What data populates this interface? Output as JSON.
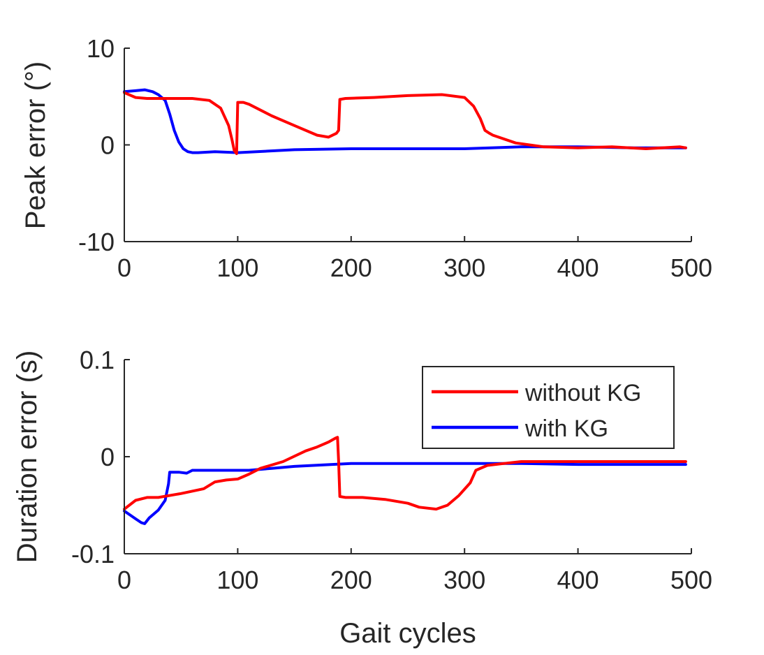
{
  "chart_data": [
    {
      "type": "line",
      "ylabel": "Peak error (°)",
      "xlabel": "",
      "xlim": [
        0,
        500
      ],
      "ylim": [
        -10,
        10
      ],
      "xticks": [
        "0",
        "100",
        "200",
        "300",
        "400",
        "500"
      ],
      "yticks": [
        "-10",
        "0",
        "10"
      ],
      "grid": false,
      "series": [
        {
          "color": "#ff0000",
          "x": [
            0,
            10,
            20,
            40,
            60,
            75,
            85,
            92,
            95,
            97,
            99,
            100,
            105,
            110,
            130,
            150,
            170,
            180,
            187,
            189,
            190,
            195,
            220,
            250,
            280,
            300,
            308,
            314,
            318,
            322,
            325,
            330,
            345,
            370,
            400,
            430,
            460,
            490,
            495
          ],
          "y": [
            5.4,
            4.9,
            4.8,
            4.8,
            4.8,
            4.6,
            3.8,
            2.0,
            0.5,
            -0.6,
            -0.9,
            4.4,
            4.4,
            4.2,
            3.0,
            2.0,
            1.0,
            0.8,
            1.2,
            1.5,
            4.7,
            4.8,
            4.9,
            5.1,
            5.2,
            4.9,
            4.0,
            2.7,
            1.5,
            1.2,
            1.0,
            0.8,
            0.2,
            -0.2,
            -0.3,
            -0.2,
            -0.4,
            -0.2,
            -0.3
          ]
        },
        {
          "color": "#0000ff",
          "x": [
            0,
            10,
            18,
            25,
            30,
            36,
            40,
            44,
            48,
            52,
            56,
            60,
            65,
            80,
            100,
            150,
            200,
            250,
            300,
            350,
            400,
            450,
            495
          ],
          "y": [
            5.5,
            5.6,
            5.7,
            5.5,
            5.2,
            4.6,
            3.2,
            1.5,
            0.3,
            -0.4,
            -0.7,
            -0.8,
            -0.8,
            -0.7,
            -0.8,
            -0.5,
            -0.4,
            -0.4,
            -0.4,
            -0.2,
            -0.2,
            -0.3,
            -0.3
          ]
        }
      ]
    },
    {
      "type": "line",
      "ylabel": "Duration error (s)",
      "xlabel": "Gait cycles",
      "xlim": [
        0,
        500
      ],
      "ylim": [
        -0.1,
        0.1
      ],
      "xticks": [
        "0",
        "100",
        "200",
        "300",
        "400",
        "500"
      ],
      "yticks": [
        "-0.1",
        "0",
        "0.1"
      ],
      "grid": false,
      "legend": "top-right",
      "series": [
        {
          "name": "without KG",
          "color": "#ff0000",
          "x": [
            0,
            10,
            20,
            30,
            50,
            70,
            80,
            90,
            100,
            110,
            120,
            140,
            160,
            170,
            180,
            186,
            188,
            189,
            190,
            195,
            210,
            230,
            250,
            260,
            275,
            285,
            295,
            305,
            310,
            320,
            335,
            350,
            400,
            450,
            495
          ],
          "y": [
            -0.054,
            -0.045,
            -0.042,
            -0.042,
            -0.038,
            -0.033,
            -0.026,
            -0.024,
            -0.023,
            -0.018,
            -0.012,
            -0.005,
            0.006,
            0.01,
            0.015,
            0.019,
            0.02,
            -0.005,
            -0.041,
            -0.042,
            -0.042,
            -0.044,
            -0.048,
            -0.052,
            -0.054,
            -0.05,
            -0.04,
            -0.027,
            -0.014,
            -0.009,
            -0.007,
            -0.005,
            -0.005,
            -0.005,
            -0.005
          ]
        },
        {
          "name": "with KG",
          "color": "#0000ff",
          "x": [
            0,
            5,
            10,
            15,
            18,
            22,
            30,
            36,
            39,
            40,
            42,
            48,
            55,
            60,
            70,
            90,
            110,
            130,
            150,
            200,
            250,
            300,
            350,
            400,
            450,
            495
          ],
          "y": [
            -0.056,
            -0.06,
            -0.064,
            -0.068,
            -0.069,
            -0.063,
            -0.055,
            -0.045,
            -0.028,
            -0.016,
            -0.016,
            -0.016,
            -0.017,
            -0.014,
            -0.014,
            -0.014,
            -0.014,
            -0.012,
            -0.01,
            -0.007,
            -0.007,
            -0.007,
            -0.007,
            -0.008,
            -0.008,
            -0.008
          ]
        }
      ]
    }
  ]
}
